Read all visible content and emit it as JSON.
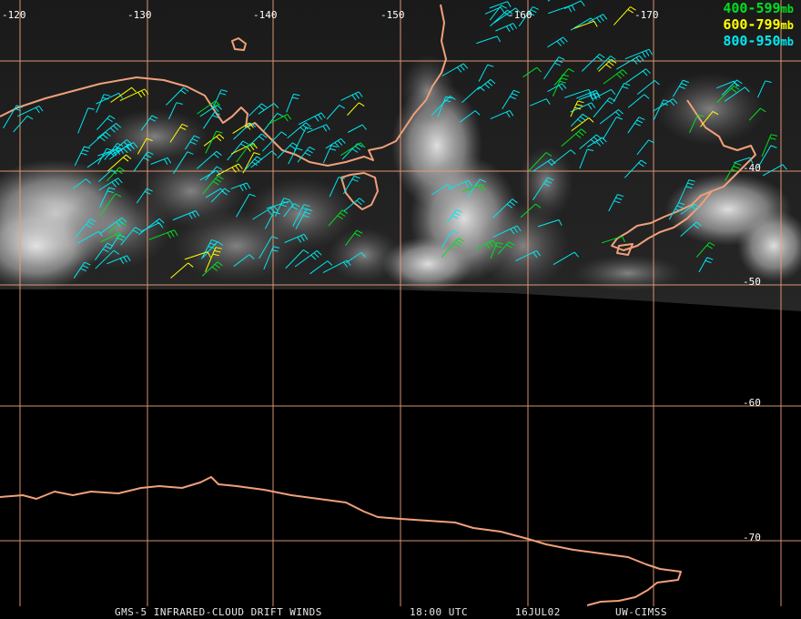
{
  "colors": {
    "grid": "#f0a07a",
    "coast": "#f0a07a",
    "band_low": "#00e020",
    "band_mid": "#ffff00",
    "band_high": "#00e8f0"
  },
  "lon_labels": [
    "-120",
    "-130",
    "-140",
    "-150",
    "-160",
    "-170"
  ],
  "lat_labels": [
    "-40",
    "-50",
    "-60",
    "-70"
  ],
  "legend": [
    {
      "label": "400-599",
      "unit": "mb",
      "color": "#00e020"
    },
    {
      "label": "600-799",
      "unit": "mb",
      "color": "#ffff00"
    },
    {
      "label": "800-950",
      "unit": "mb",
      "color": "#00e8f0"
    }
  ],
  "footer": {
    "product": "GMS-5 INFRARED-CLOUD DRIFT WINDS",
    "time": "18:00 UTC",
    "date": "16JUL02",
    "source": "UW-CIMSS"
  }
}
